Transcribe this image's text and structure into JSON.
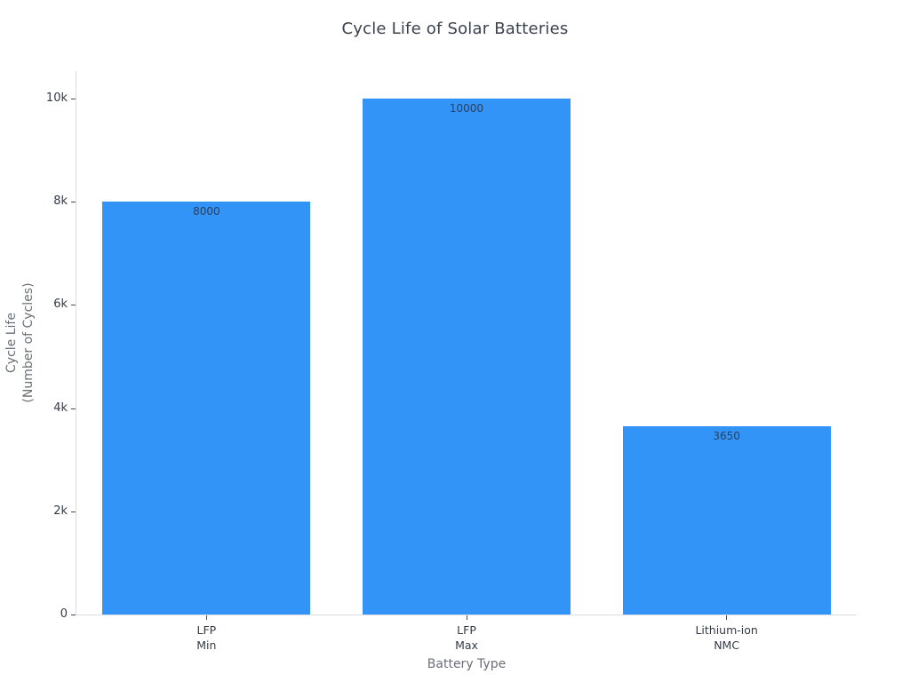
{
  "chart_data": {
    "type": "bar",
    "title": "Cycle Life of Solar Batteries",
    "xlabel": "Battery Type",
    "ylabel": "Cycle Life\n(Number of Cycles)",
    "categories": [
      "LFP\nMin",
      "LFP\nMax",
      "Lithium-ion\nNMC"
    ],
    "values": [
      8000,
      10000,
      3650
    ],
    "bar_labels": [
      "8000",
      "10000",
      "3650"
    ],
    "yticks": {
      "values": [
        0,
        2000,
        4000,
        6000,
        8000,
        10000
      ],
      "labels": [
        "0",
        "2k",
        "4k",
        "6k",
        "8k",
        "10k"
      ]
    },
    "ylim": [
      0,
      10534
    ],
    "bar_width_fraction": 0.8,
    "grid": false,
    "legend": false,
    "colors": {
      "bar": "#3194F6",
      "bar_label": "#2a3f5f",
      "title": "#39414d",
      "tick_label": "#333a45",
      "axis_title": "#6a7077",
      "axis_line": "#d9dde1",
      "tick_mark": "#444a52",
      "background": "#ffffff"
    }
  }
}
